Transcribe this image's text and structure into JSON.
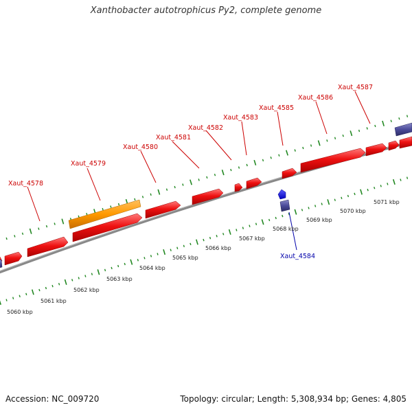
{
  "title": "Xanthobacter autotrophicus Py2, complete genome",
  "footer": {
    "accession": "Accession: NC_009720",
    "summary": "Topology: circular; Length: 5,308,934 bp; Genes: 4,805"
  },
  "colors": {
    "forward_gene": "#ee1111",
    "reverse_gene": "#4b4b9a",
    "rna_gene": "#ff9900",
    "highlight_gene": "#1010ee",
    "tick": "#228822",
    "backbone": "#888888",
    "forward_label": "#cc0000",
    "reverse_label": "#0000aa"
  },
  "scale_ticks": [
    "5060 kbp",
    "5061 kbp",
    "5062 kbp",
    "5063 kbp",
    "5064 kbp",
    "5065 kbp",
    "5066 kbp",
    "5067 kbp",
    "5068 kbp",
    "5069 kbp",
    "5070 kbp",
    "5071 kbp"
  ],
  "forward_labels": [
    "Xaut_4578",
    "Xaut_4579",
    "Xaut_4580",
    "Xaut_4581",
    "Xaut_4582",
    "Xaut_4583",
    "Xaut_4585",
    "Xaut_4586",
    "Xaut_4587"
  ],
  "reverse_labels": [
    "Xaut_4584"
  ]
}
